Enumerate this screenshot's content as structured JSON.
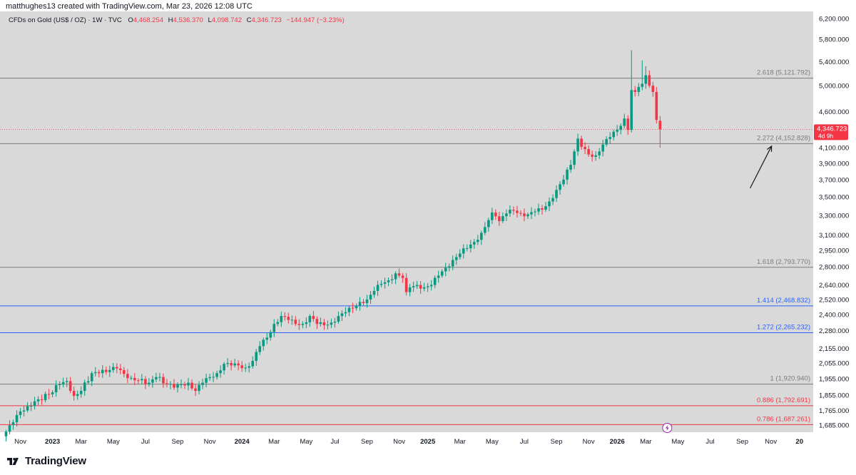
{
  "header": {
    "attribution": "matthughes13 created with TradingView.com, Mar 23, 2026 12:08 UTC"
  },
  "legend": {
    "symbol": "CFDs on Gold (US$ / OZ) · 1W · TVC",
    "o_label": "O",
    "o_value": "4,468.254",
    "h_label": "H",
    "h_value": "4,536.370",
    "l_label": "L",
    "l_value": "4,098.742",
    "c_label": "C",
    "c_value": "4,346.723",
    "change": "−144.947 (−3.23%)"
  },
  "footer": {
    "brand": "TradingView"
  },
  "colors": {
    "plot_bg": "#d9d9d9",
    "up": "#089981",
    "down": "#f23645",
    "fib_grey": "#7c7c7c",
    "fib_blue": "#2962ff",
    "fib_red": "#f23645",
    "axis_text": "#131722"
  },
  "chart_data": {
    "type": "candlestick",
    "title": "CFDs on Gold (US$ / OZ) · 1W · TVC",
    "scale": "log",
    "ylim": [
      1640,
      6300
    ],
    "y_ticks": [
      "6,200.000",
      "5,800.000",
      "5,400.000",
      "5,000.000",
      "4,600.000",
      "4,100.000",
      "3,900.000",
      "3,700.000",
      "3,500.000",
      "3,300.000",
      "3,100.000",
      "2,950.000",
      "2,800.000",
      "2,640.000",
      "2,520.000",
      "2,400.000",
      "2,280.000",
      "2,155.000",
      "2,055.000",
      "1,955.000",
      "1,855.000",
      "1,765.000",
      "1,685.000"
    ],
    "x_ticks": [
      {
        "label": "Nov",
        "idx": 4,
        "bold": false
      },
      {
        "label": "2023",
        "idx": 13,
        "bold": true
      },
      {
        "label": "Mar",
        "idx": 21,
        "bold": false
      },
      {
        "label": "May",
        "idx": 30,
        "bold": false
      },
      {
        "label": "Jul",
        "idx": 39,
        "bold": false
      },
      {
        "label": "Sep",
        "idx": 48,
        "bold": false
      },
      {
        "label": "Nov",
        "idx": 57,
        "bold": false
      },
      {
        "label": "2024",
        "idx": 66,
        "bold": true
      },
      {
        "label": "Mar",
        "idx": 75,
        "bold": false
      },
      {
        "label": "May",
        "idx": 84,
        "bold": false
      },
      {
        "label": "Jul",
        "idx": 92,
        "bold": false
      },
      {
        "label": "Sep",
        "idx": 101,
        "bold": false
      },
      {
        "label": "Nov",
        "idx": 110,
        "bold": false
      },
      {
        "label": "2025",
        "idx": 118,
        "bold": true
      },
      {
        "label": "Mar",
        "idx": 127,
        "bold": false
      },
      {
        "label": "May",
        "idx": 136,
        "bold": false
      },
      {
        "label": "Jul",
        "idx": 145,
        "bold": false
      },
      {
        "label": "Sep",
        "idx": 154,
        "bold": false
      },
      {
        "label": "Nov",
        "idx": 163,
        "bold": false
      },
      {
        "label": "2026",
        "idx": 171,
        "bold": true
      },
      {
        "label": "Mar",
        "idx": 179,
        "bold": false
      },
      {
        "label": "May",
        "idx": 188,
        "bold": false
      },
      {
        "label": "Jul",
        "idx": 197,
        "bold": false
      },
      {
        "label": "Sep",
        "idx": 206,
        "bold": false
      },
      {
        "label": "Nov",
        "idx": 214,
        "bold": false
      },
      {
        "label": "20",
        "idx": 222,
        "bold": true
      }
    ],
    "last_price": {
      "value": 4346.723,
      "label": "4,346.723",
      "countdown": "4d 9h"
    },
    "fib_levels": [
      {
        "ratio": 2.618,
        "price": 5121.792,
        "label": "2.618 (5,121.792)",
        "color": "grey"
      },
      {
        "ratio": 2.272,
        "price": 4152.828,
        "label": "2.272 (4,152.828)",
        "color": "grey"
      },
      {
        "ratio": 1.618,
        "price": 2793.77,
        "label": "1.618 (2,793.770)",
        "color": "grey"
      },
      {
        "ratio": 1.414,
        "price": 2468.832,
        "label": "1.414 (2,468.832)",
        "color": "blue"
      },
      {
        "ratio": 1.272,
        "price": 2265.232,
        "label": "1.272 (2,265.232)",
        "color": "blue"
      },
      {
        "ratio": 1,
        "price": 1920.94,
        "label": "1 (1,920.940)",
        "color": "grey"
      },
      {
        "ratio": 0.886,
        "price": 1792.691,
        "label": "0.886 (1,792.691)",
        "color": "red"
      },
      {
        "ratio": 0.786,
        "price": 1687.261,
        "label": "0.786 (1,687.261)",
        "color": "red"
      }
    ],
    "arrow_annotation": {
      "from_price": 3600,
      "to_price": 4120,
      "from_idx": 208,
      "to_idx": 214
    },
    "anchors": [
      [
        0,
        1650
      ],
      [
        2,
        1700
      ],
      [
        4,
        1760
      ],
      [
        6,
        1790
      ],
      [
        9,
        1830
      ],
      [
        12,
        1860
      ],
      [
        15,
        1920
      ],
      [
        17,
        1940
      ],
      [
        19,
        1850
      ],
      [
        21,
        1880
      ],
      [
        24,
        1990
      ],
      [
        26,
        1990
      ],
      [
        29,
        2010
      ],
      [
        31,
        2020
      ],
      [
        33,
        1985
      ],
      [
        35,
        1960
      ],
      [
        37,
        1945
      ],
      [
        40,
        1930
      ],
      [
        42,
        1965
      ],
      [
        45,
        1920
      ],
      [
        47,
        1900
      ],
      [
        49,
        1920
      ],
      [
        51,
        1930
      ],
      [
        53,
        1880
      ],
      [
        55,
        1930
      ],
      [
        57,
        1965
      ],
      [
        59,
        1990
      ],
      [
        61,
        2050
      ],
      [
        63,
        2040
      ],
      [
        65,
        2040
      ],
      [
        67,
        2025
      ],
      [
        69,
        2070
      ],
      [
        71,
        2170
      ],
      [
        73,
        2230
      ],
      [
        75,
        2330
      ],
      [
        77,
        2390
      ],
      [
        79,
        2360
      ],
      [
        81,
        2330
      ],
      [
        83,
        2330
      ],
      [
        85,
        2390
      ],
      [
        87,
        2330
      ],
      [
        89,
        2320
      ],
      [
        91,
        2340
      ],
      [
        93,
        2390
      ],
      [
        95,
        2420
      ],
      [
        97,
        2450
      ],
      [
        99,
        2500
      ],
      [
        101,
        2520
      ],
      [
        103,
        2590
      ],
      [
        105,
        2650
      ],
      [
        107,
        2680
      ],
      [
        109,
        2740
      ],
      [
        111,
        2700
      ],
      [
        112,
        2580
      ],
      [
        113,
        2620
      ],
      [
        115,
        2640
      ],
      [
        117,
        2620
      ],
      [
        119,
        2640
      ],
      [
        121,
        2720
      ],
      [
        123,
        2790
      ],
      [
        125,
        2860
      ],
      [
        127,
        2920
      ],
      [
        129,
        2970
      ],
      [
        131,
        3030
      ],
      [
        133,
        3120
      ],
      [
        135,
        3250
      ],
      [
        136,
        3330
      ],
      [
        137,
        3290
      ],
      [
        138,
        3240
      ],
      [
        140,
        3320
      ],
      [
        142,
        3350
      ],
      [
        144,
        3320
      ],
      [
        146,
        3310
      ],
      [
        148,
        3340
      ],
      [
        150,
        3360
      ],
      [
        152,
        3450
      ],
      [
        154,
        3580
      ],
      [
        156,
        3700
      ],
      [
        158,
        3880
      ],
      [
        159,
        4050
      ],
      [
        160,
        4220
      ],
      [
        161,
        4110
      ],
      [
        163,
        4010
      ],
      [
        165,
        4000
      ],
      [
        167,
        4140
      ],
      [
        169,
        4240
      ],
      [
        171,
        4340
      ],
      [
        173,
        4500
      ],
      [
        174,
        4340
      ],
      [
        175,
        4930
      ],
      [
        176,
        4900
      ],
      [
        177,
        4980
      ],
      [
        178,
        5030
      ],
      [
        179,
        5170
      ],
      [
        180,
        5000
      ],
      [
        181,
        4900
      ],
      [
        182,
        4480
      ],
      [
        183,
        4346.7
      ]
    ]
  }
}
